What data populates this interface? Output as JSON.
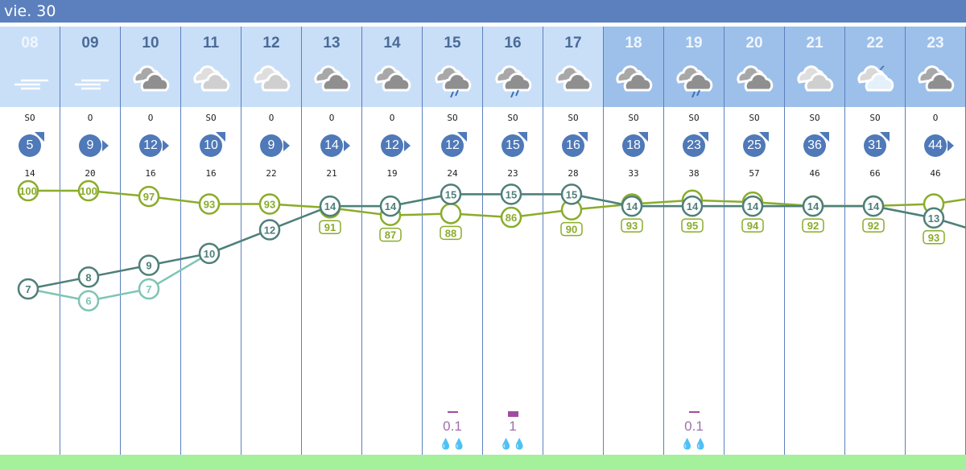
{
  "day_label": "vie. 30",
  "colors": {
    "header": "#5b80bd",
    "temperature": "#4f7f7a",
    "humidity": "#8aac2a",
    "feels_like": "#7fc4b4",
    "precip": "#a04ca0",
    "wind": "#4f79b8"
  },
  "hours": [
    "08",
    "09",
    "10",
    "11",
    "12",
    "13",
    "14",
    "15",
    "16",
    "17",
    "18",
    "19",
    "20",
    "21",
    "22",
    "23"
  ],
  "sky": [
    "fog",
    "fog",
    "cloudy",
    "overcast-light",
    "overcast-light",
    "cloudy",
    "cloudy",
    "cloudy-rain",
    "cloudy-rain",
    "cloudy",
    "cloudy",
    "cloudy-rain",
    "cloudy",
    "overcast-light",
    "night-cloud",
    "cloudy"
  ],
  "wind_dir": [
    "SO",
    "O",
    "O",
    "SO",
    "O",
    "O",
    "O",
    "SO",
    "SO",
    "SO",
    "SO",
    "SO",
    "SO",
    "SO",
    "SO",
    "O"
  ],
  "wind_speed": [
    "5",
    "9",
    "12",
    "10",
    "9",
    "14",
    "12",
    "12",
    "15",
    "16",
    "18",
    "23",
    "25",
    "36",
    "31",
    "44"
  ],
  "gusts": [
    "14",
    "20",
    "16",
    "16",
    "22",
    "21",
    "19",
    "24",
    "23",
    "28",
    "33",
    "38",
    "57",
    "46",
    "66",
    "46"
  ],
  "chart_data": {
    "type": "line",
    "categories": [
      "08",
      "09",
      "10",
      "11",
      "12",
      "13",
      "14",
      "15",
      "16",
      "17",
      "18",
      "19",
      "20",
      "21",
      "22",
      "23"
    ],
    "series": [
      {
        "key": "temperature",
        "values": [
          7,
          8,
          9,
          10,
          12,
          14,
          14,
          15,
          15,
          15,
          14,
          14,
          14,
          14,
          14,
          13
        ]
      },
      {
        "key": "feels_like",
        "values": [
          7,
          6,
          7,
          10,
          12,
          14,
          14,
          15,
          15,
          15,
          14,
          14,
          14,
          14,
          14,
          13
        ]
      },
      {
        "key": "humidity",
        "values": [
          100,
          100,
          97,
          93,
          93,
          91,
          87,
          88,
          86,
          90,
          93,
          95,
          94,
          92,
          92,
          93
        ]
      }
    ],
    "precipitation": [
      null,
      null,
      null,
      null,
      null,
      null,
      null,
      "0.1",
      "1",
      null,
      null,
      "0.1",
      null,
      null,
      null,
      null
    ]
  }
}
